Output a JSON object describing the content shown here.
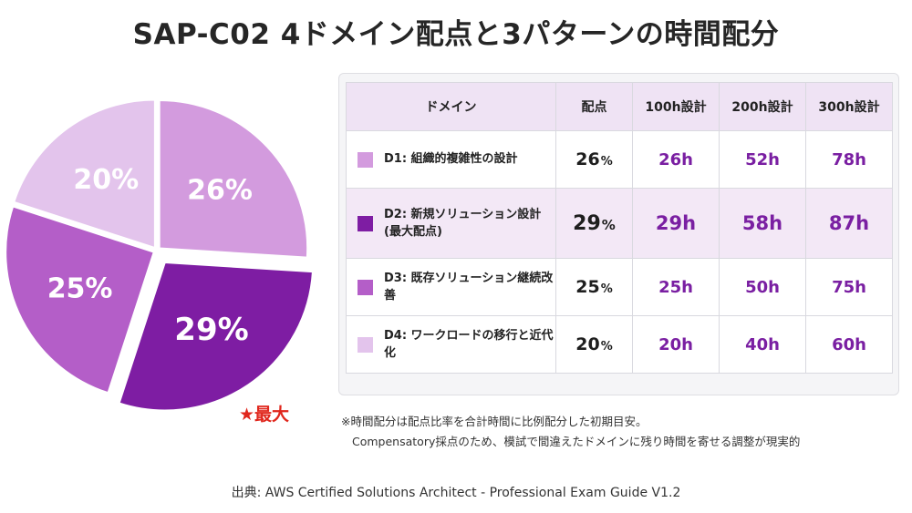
{
  "title": "SAP-C02 4ドメイン配点と3パターンの時間配分",
  "chart_data": {
    "type": "pie",
    "title": "",
    "slices": [
      {
        "label": "D1",
        "value": 26,
        "display": "26%",
        "color": "#d39bde",
        "exploded": false
      },
      {
        "label": "D2",
        "value": 29,
        "display": "29%",
        "color": "#7e1da3",
        "exploded": true
      },
      {
        "label": "D3",
        "value": 25,
        "display": "25%",
        "color": "#b45ec8",
        "exploded": false
      },
      {
        "label": "D4",
        "value": 20,
        "display": "20%",
        "color": "#e3c4ec",
        "exploded": false
      }
    ],
    "start_angle_deg": 0,
    "direction": "clockwise",
    "annotation": "★最大",
    "annotation_color": "#e0261c"
  },
  "table": {
    "headers": [
      "ドメイン",
      "配点",
      "100h設計",
      "200h設計",
      "300h設計"
    ],
    "rows": [
      {
        "name": "D1: 組織的複雑性の設計",
        "score": "26",
        "unit": "%",
        "h100": "26h",
        "h200": "52h",
        "h300": "78h",
        "color": "#d39bde",
        "highlight": false
      },
      {
        "name": "D2: 新規ソリューション設計 (最大配点)",
        "score": "29",
        "unit": "%",
        "h100": "29h",
        "h200": "58h",
        "h300": "87h",
        "color": "#7e1da3",
        "highlight": true
      },
      {
        "name": "D3: 既存ソリューション継続改善",
        "score": "25",
        "unit": "%",
        "h100": "25h",
        "h200": "50h",
        "h300": "75h",
        "color": "#b45ec8",
        "highlight": false
      },
      {
        "name": "D4: ワークロードの移行と近代化",
        "score": "20",
        "unit": "%",
        "h100": "20h",
        "h200": "40h",
        "h300": "60h",
        "color": "#e3c4ec",
        "highlight": false
      }
    ]
  },
  "notes": {
    "line1": "※時間配分は配点比率を合計時間に比例配分した初期目安。",
    "line2": "Compensatory採点のため、模試で間違えたドメインに残り時間を寄せる調整が現実的"
  },
  "source": "出典: AWS Certified Solutions Architect - Professional Exam Guide V1.2"
}
